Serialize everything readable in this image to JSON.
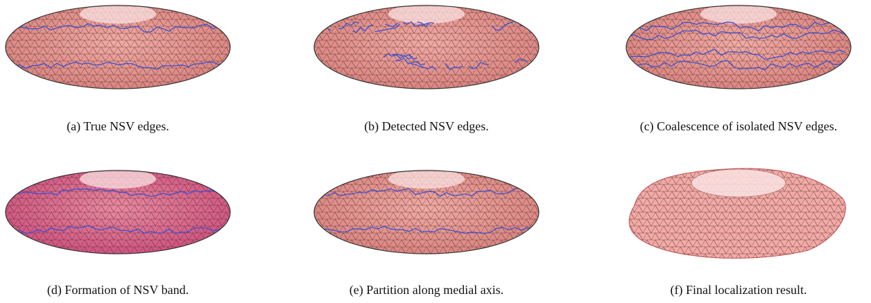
{
  "figure": {
    "subfigures": [
      {
        "caption": "(a) True NSV edges."
      },
      {
        "caption": "(b) Detected NSV edges."
      },
      {
        "caption": "(c) Coalescence of isolated NSV edges."
      },
      {
        "caption": "(d) Formation of NSV band."
      },
      {
        "caption": "(e) Partition along medial axis."
      },
      {
        "caption": "(f) Final localization result."
      }
    ]
  }
}
